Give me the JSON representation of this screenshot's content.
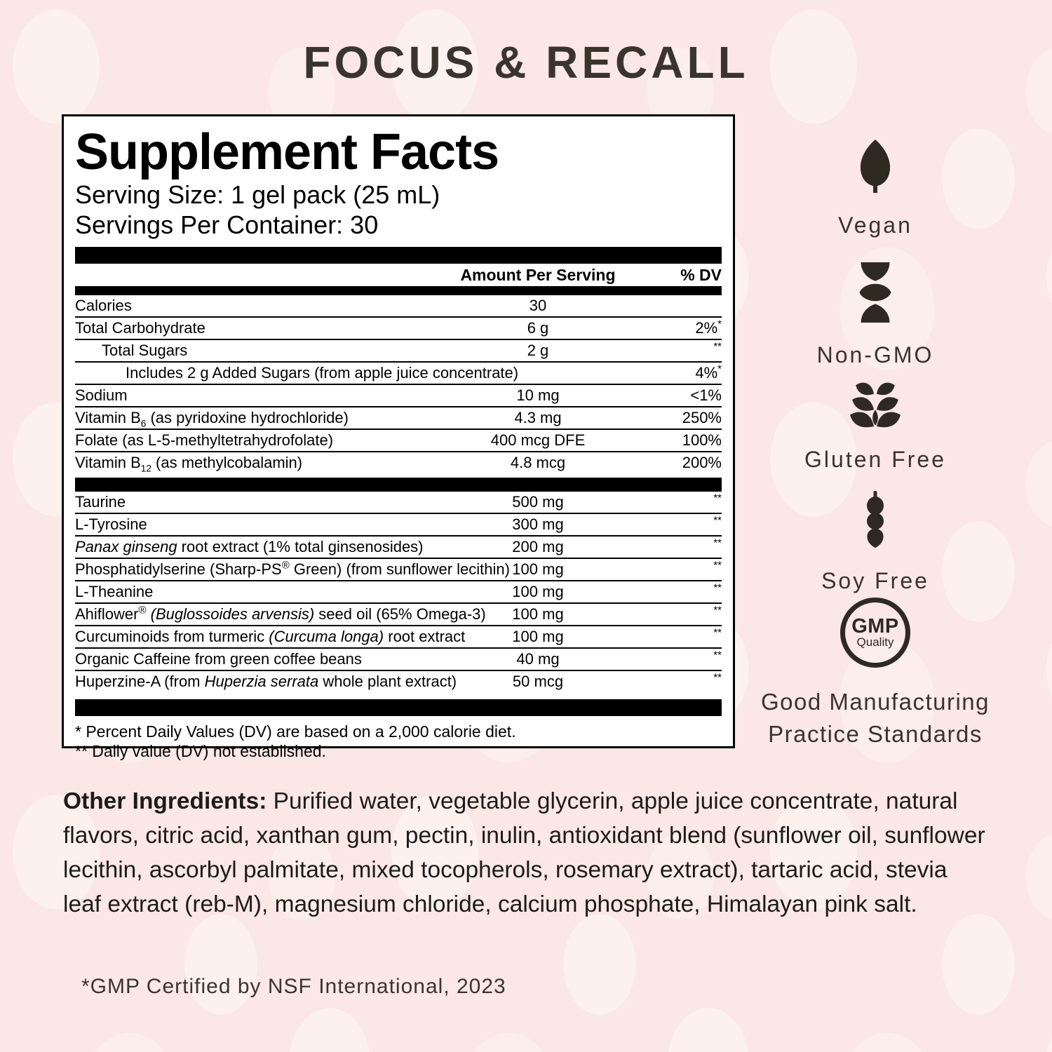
{
  "title": "FOCUS & RECALL",
  "panel": {
    "heading": "Supplement Facts",
    "serving_size": "Serving Size: 1 gel pack (25 mL)",
    "servings_per_container": "Servings Per Container: 30",
    "col_amount": "Amount Per Serving",
    "col_dv": "% DV",
    "sections": [
      {
        "rows": [
          {
            "name": [
              {
                "t": "Calories"
              }
            ],
            "indent": 0,
            "amount": "30",
            "dv": ""
          },
          {
            "name": [
              {
                "t": "Total Carbohydrate"
              }
            ],
            "indent": 0,
            "amount": "6 g",
            "dv": "2%*"
          },
          {
            "name": [
              {
                "t": "Total Sugars"
              }
            ],
            "indent": 1,
            "amount": "2 g",
            "dv": "**"
          },
          {
            "name": [
              {
                "t": "Includes 2 g Added Sugars (from apple juice concentrate)"
              }
            ],
            "indent": 2,
            "amount": "",
            "dv": "4%*"
          },
          {
            "name": [
              {
                "t": "Sodium"
              }
            ],
            "indent": 0,
            "amount": "10 mg",
            "dv": "<1%"
          },
          {
            "name": [
              {
                "t": "Vitamin B"
              },
              {
                "t": "6",
                "sub": true
              },
              {
                "t": " (as pyridoxine hydrochloride)"
              }
            ],
            "indent": 0,
            "amount": "4.3 mg",
            "dv": "250%"
          },
          {
            "name": [
              {
                "t": "Folate (as L-5-methyltetrahydrofolate)"
              }
            ],
            "indent": 0,
            "amount": "400 mcg  DFE",
            "dv": "100%"
          },
          {
            "name": [
              {
                "t": "Vitamin B"
              },
              {
                "t": "12",
                "sub": true
              },
              {
                "t": " (as methylcobalamin)"
              }
            ],
            "indent": 0,
            "amount": "4.8 mcg",
            "dv": "200%"
          }
        ]
      },
      {
        "rows": [
          {
            "name": [
              {
                "t": "Taurine"
              }
            ],
            "indent": 0,
            "amount": "500 mg",
            "dv": "**"
          },
          {
            "name": [
              {
                "t": "L-Tyrosine"
              }
            ],
            "indent": 0,
            "amount": "300 mg",
            "dv": "**"
          },
          {
            "name": [
              {
                "t": "Panax ginseng",
                "italic": true
              },
              {
                "t": " root extract (1% total ginsenosides)"
              }
            ],
            "indent": 0,
            "amount": "200 mg",
            "dv": "**"
          },
          {
            "name": [
              {
                "t": "Phosphatidylserine (Sharp-PS"
              },
              {
                "t": "®",
                "sup": true
              },
              {
                "t": " Green) (from sunflower lecithin)"
              }
            ],
            "indent": 0,
            "amount": "100 mg",
            "dv": "**"
          },
          {
            "name": [
              {
                "t": "L-Theanine"
              }
            ],
            "indent": 0,
            "amount": "100 mg",
            "dv": "**"
          },
          {
            "name": [
              {
                "t": "Ahiflower"
              },
              {
                "t": "®",
                "sup": true
              },
              {
                "t": " "
              },
              {
                "t": "(Buglossoides arvensis)",
                "italic": true
              },
              {
                "t": " seed oil (65% Omega-3)"
              }
            ],
            "indent": 0,
            "amount": "100 mg",
            "dv": "**"
          },
          {
            "name": [
              {
                "t": "Curcuminoids from turmeric "
              },
              {
                "t": "(Curcuma longa)",
                "italic": true
              },
              {
                "t": " root extract"
              }
            ],
            "indent": 0,
            "amount": "100 mg",
            "dv": "**"
          },
          {
            "name": [
              {
                "t": "Organic Caffeine from green coffee beans"
              }
            ],
            "indent": 0,
            "amount": "40 mg",
            "dv": "**"
          },
          {
            "name": [
              {
                "t": "Huperzine-A (from "
              },
              {
                "t": "Huperzia serrata",
                "italic": true
              },
              {
                "t": " whole plant extract)"
              }
            ],
            "indent": 0,
            "amount": "50 mcg",
            "dv": "**"
          }
        ]
      }
    ],
    "footnotes": [
      "* Percent Daily Values (DV) are based on a 2,000 calorie diet.",
      "** Daily value (DV) not established."
    ]
  },
  "badges": [
    {
      "icon": "leaf-icon",
      "label": "Vegan"
    },
    {
      "icon": "dna-icon",
      "label": "Non-GMO"
    },
    {
      "icon": "wheat-icon",
      "label": "Gluten Free"
    },
    {
      "icon": "soy-pod-icon",
      "label": "Soy Free"
    },
    {
      "icon": "gmp-badge-icon",
      "label": "Good Manufacturing Practice Standards",
      "badge_text": "GMP",
      "badge_subtext": "Quality"
    }
  ],
  "other_ingredients": {
    "label": "Other Ingredients:",
    "text": " Purified water, vegetable glycerin, apple juice concentrate, natural flavors, citric acid, xanthan gum, pectin, inulin, antioxidant blend (sunflower oil, sunflower lecithin, ascorbyl palmitate, mixed tocopherols, rosemary extract), tartaric acid, stevia leaf extract (reb-M), magnesium chloride, calcium phosphate, Himalayan pink salt."
  },
  "footer_note": "*GMP Certified by NSF International, 2023",
  "colors": {
    "background": "#fbe7e5",
    "dot": "#fdf1ee",
    "title": "#3a352c",
    "icon": "#2e2a22",
    "panel_border": "#000000",
    "panel_text": "#000000"
  }
}
